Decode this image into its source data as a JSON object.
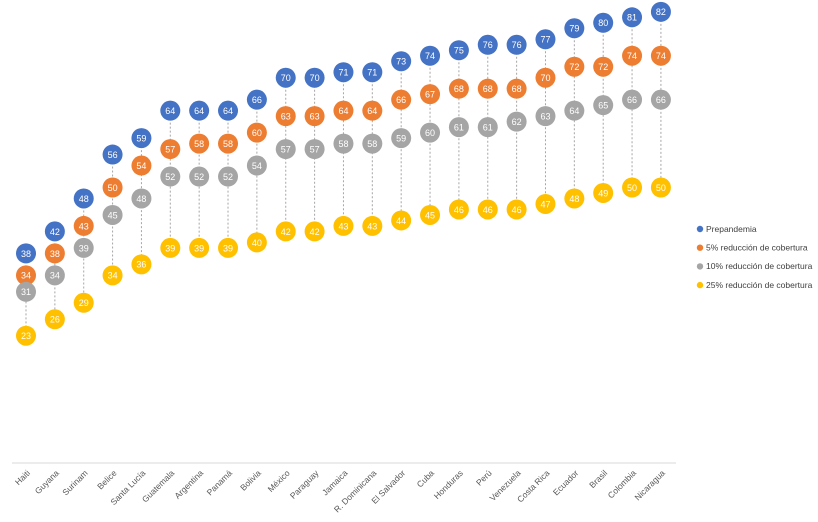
{
  "chart_data": {
    "type": "dot",
    "categories": [
      "Haiti",
      "Guyana",
      "Surinam",
      "Belice",
      "Santa Lucía",
      "Guatemala",
      "Argentina",
      "Panamá",
      "Bolivia",
      "México",
      "Paraguay",
      "Jamaica",
      "R. Dominicana",
      "El Salvador",
      "Cuba",
      "Honduras",
      "Perú",
      "Venezuela",
      "Costa Rica",
      "Ecuador",
      "Brasil",
      "Colombia",
      "Nicaragua"
    ],
    "series": [
      {
        "name": "Prepandemia",
        "color": "#4472c4",
        "values": [
          38,
          42,
          48,
          56,
          59,
          64,
          64,
          64,
          66,
          70,
          70,
          71,
          71,
          73,
          74,
          75,
          76,
          76,
          77,
          79,
          80,
          81,
          82
        ]
      },
      {
        "name": "5% reducción de cobertura",
        "color": "#ed7d31",
        "values": [
          34,
          38,
          43,
          50,
          54,
          57,
          58,
          58,
          60,
          63,
          63,
          64,
          64,
          66,
          67,
          68,
          68,
          68,
          70,
          72,
          72,
          74,
          74
        ]
      },
      {
        "name": "10% reducción de cobertura",
        "color": "#a5a5a5",
        "values": [
          31,
          34,
          39,
          45,
          48,
          52,
          52,
          52,
          54,
          57,
          57,
          58,
          58,
          59,
          60,
          61,
          61,
          62,
          63,
          64,
          65,
          66,
          66
        ]
      },
      {
        "name": "25% reducción de cobertura",
        "color": "#ffc000",
        "values": [
          23,
          26,
          29,
          34,
          36,
          39,
          39,
          39,
          40,
          42,
          42,
          43,
          43,
          44,
          45,
          46,
          46,
          46,
          47,
          48,
          49,
          50,
          50
        ]
      }
    ],
    "legend": "right"
  }
}
